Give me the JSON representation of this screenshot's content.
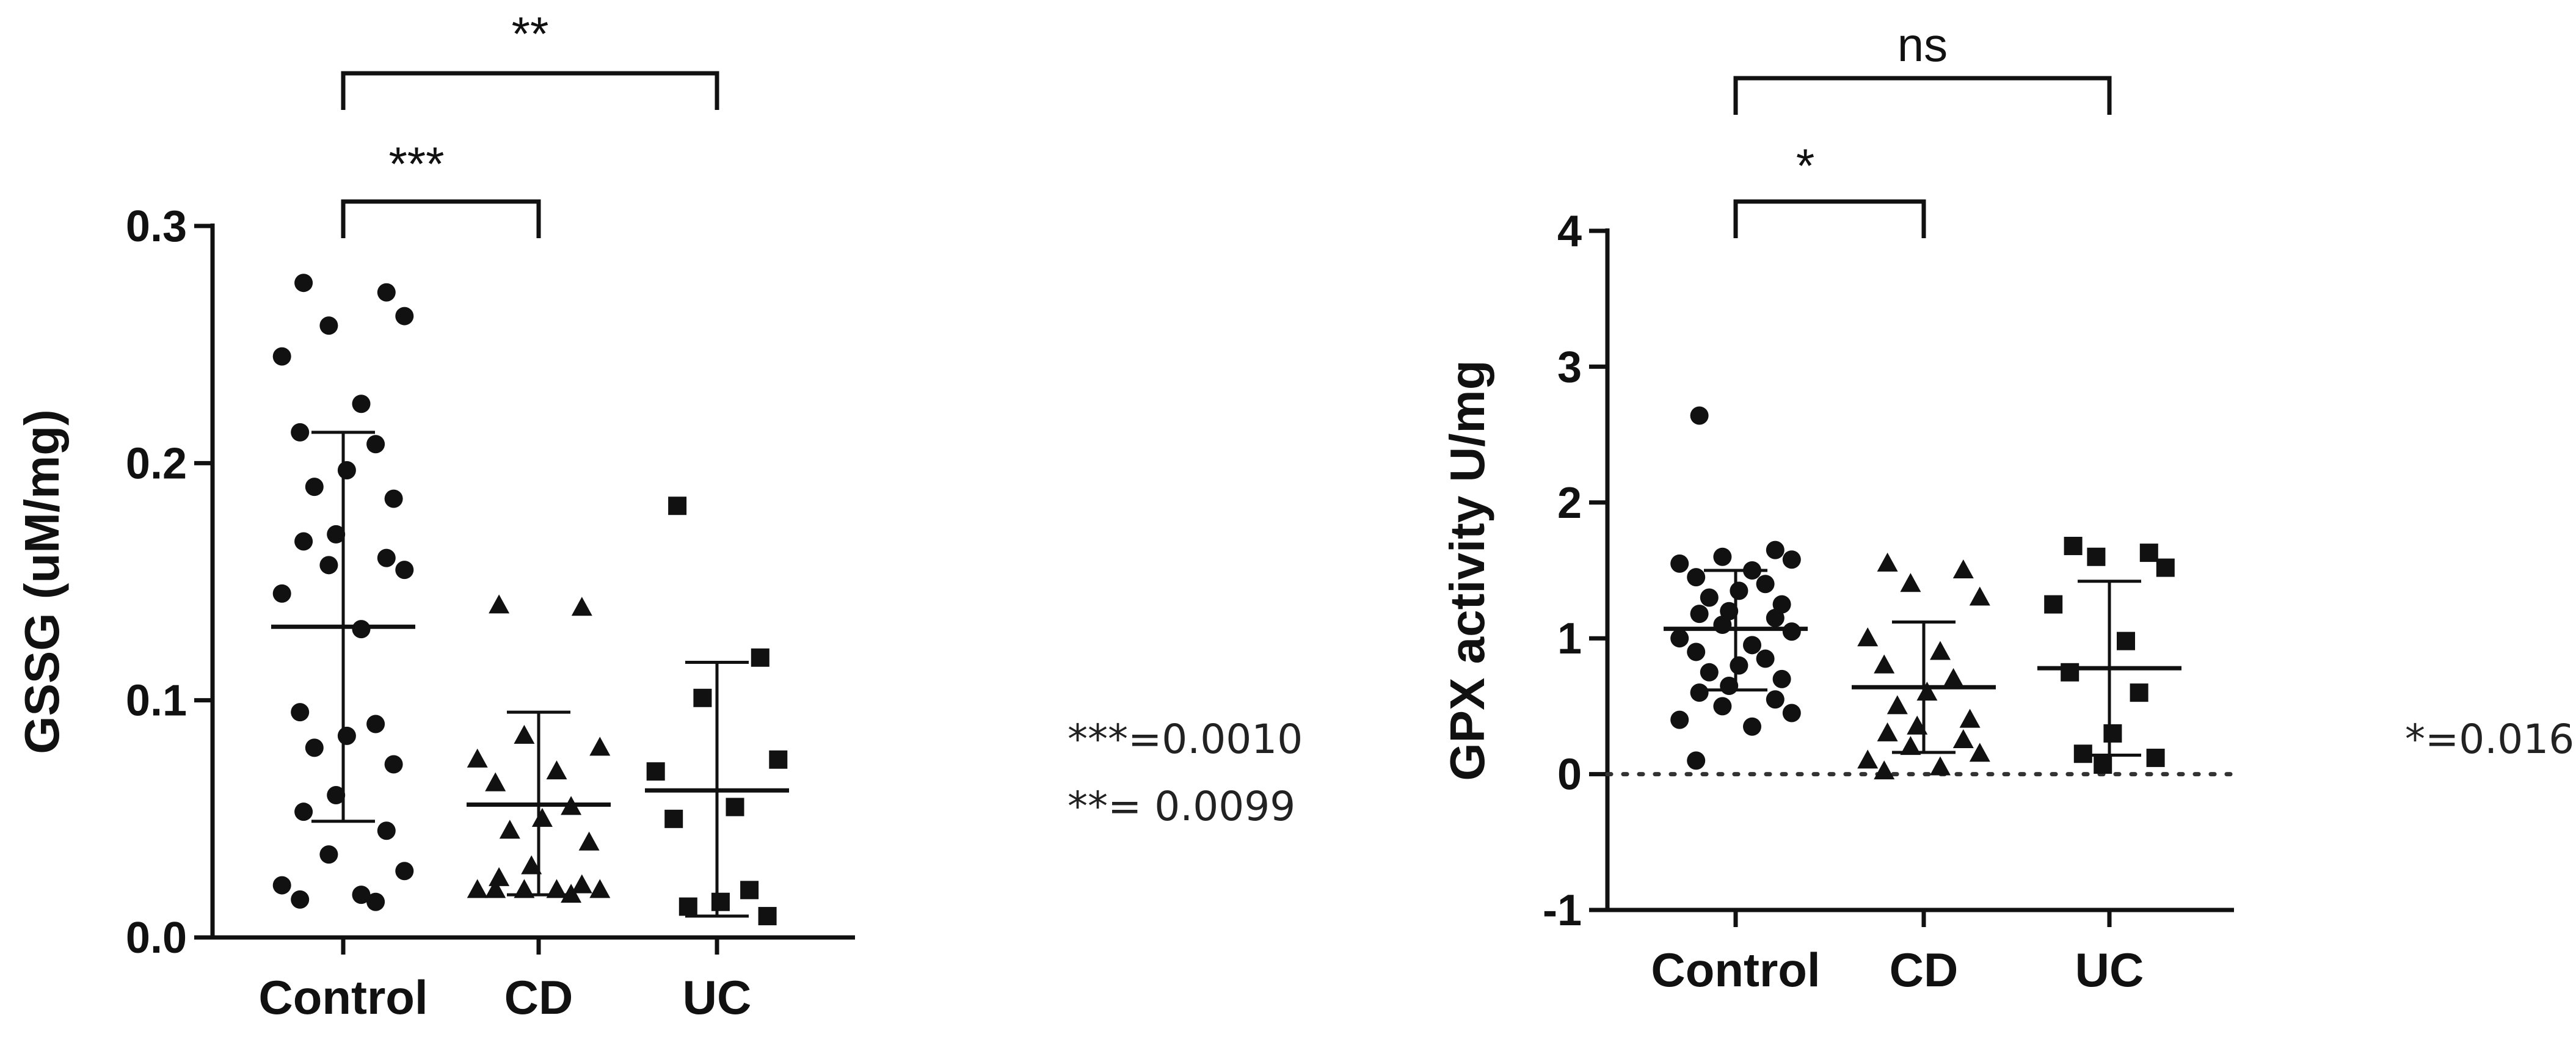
{
  "chart_data": [
    {
      "type": "scatter",
      "ylabel": "GSSG (uM/mg)",
      "ylim": [
        0,
        0.3
      ],
      "yticks": [
        "0.0",
        "0.1",
        "0.2",
        "0.3"
      ],
      "categories": [
        "Control",
        "CD",
        "UC"
      ],
      "groups": [
        {
          "name": "Control",
          "marker": "circle",
          "mean": 0.131,
          "sd_upper": 0.213,
          "sd_lower": 0.049,
          "values": [
            0.276,
            0.272,
            0.258,
            0.262,
            0.245,
            0.225,
            0.213,
            0.208,
            0.197,
            0.19,
            0.185,
            0.17,
            0.167,
            0.16,
            0.157,
            0.155,
            0.145,
            0.13,
            0.095,
            0.09,
            0.085,
            0.08,
            0.073,
            0.06,
            0.053,
            0.045,
            0.035,
            0.028,
            0.022,
            0.018,
            0.016,
            0.015
          ]
        },
        {
          "name": "CD",
          "marker": "triangle",
          "mean": 0.056,
          "sd_upper": 0.095,
          "sd_lower": 0.018,
          "values": [
            0.14,
            0.139,
            0.085,
            0.08,
            0.075,
            0.07,
            0.065,
            0.055,
            0.05,
            0.045,
            0.04,
            0.03,
            0.025,
            0.022,
            0.02,
            0.02,
            0.02,
            0.02,
            0.02,
            0.018
          ]
        },
        {
          "name": "UC",
          "marker": "square",
          "mean": 0.062,
          "sd_upper": 0.116,
          "sd_lower": 0.009,
          "values": [
            0.182,
            0.118,
            0.101,
            0.075,
            0.07,
            0.055,
            0.05,
            0.02,
            0.015,
            0.013,
            0.009
          ]
        }
      ],
      "comparisons": [
        {
          "from": "Control",
          "to": "CD",
          "label": "***"
        },
        {
          "from": "Control",
          "to": "UC",
          "label": "**"
        }
      ],
      "notes": [
        "***=0.0010",
        "**= 0.0099"
      ]
    },
    {
      "type": "scatter",
      "ylabel": "GPX activity U/mg",
      "ylim": [
        -1,
        4
      ],
      "yticks": [
        "-1",
        "0",
        "1",
        "2",
        "3",
        "4"
      ],
      "reference_line": 0,
      "categories": [
        "Control",
        "CD",
        "UC"
      ],
      "groups": [
        {
          "name": "Control",
          "marker": "circle",
          "mean": 1.07,
          "sd_upper": 1.5,
          "sd_lower": 0.62,
          "values": [
            2.64,
            1.65,
            1.6,
            1.58,
            1.55,
            1.5,
            1.45,
            1.4,
            1.35,
            1.3,
            1.25,
            1.2,
            1.18,
            1.15,
            1.1,
            1.05,
            1.0,
            0.95,
            0.9,
            0.85,
            0.8,
            0.75,
            0.7,
            0.65,
            0.6,
            0.55,
            0.5,
            0.45,
            0.4,
            0.35,
            0.1
          ]
        },
        {
          "name": "CD",
          "marker": "triangle",
          "mean": 0.64,
          "sd_upper": 1.12,
          "sd_lower": 0.16,
          "values": [
            1.55,
            1.5,
            1.4,
            1.3,
            1.0,
            0.9,
            0.8,
            0.7,
            0.6,
            0.5,
            0.4,
            0.35,
            0.3,
            0.25,
            0.2,
            0.15,
            0.1,
            0.05,
            0.02
          ]
        },
        {
          "name": "UC",
          "marker": "square",
          "mean": 0.78,
          "sd_upper": 1.42,
          "sd_lower": 0.14,
          "values": [
            1.68,
            1.63,
            1.6,
            1.52,
            1.25,
            0.98,
            0.75,
            0.6,
            0.3,
            0.15,
            0.12,
            0.07
          ]
        }
      ],
      "comparisons": [
        {
          "from": "Control",
          "to": "CD",
          "label": "*"
        },
        {
          "from": "Control",
          "to": "UC",
          "label": "ns"
        }
      ],
      "notes": [
        "*=0.0161"
      ]
    }
  ]
}
